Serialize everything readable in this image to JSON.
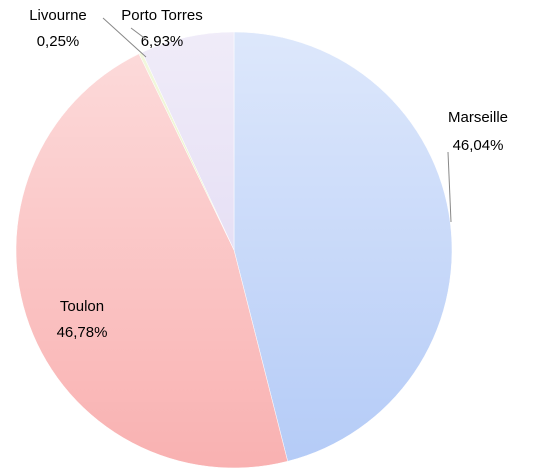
{
  "chart_data": {
    "type": "pie",
    "categories": [
      "Marseille",
      "Toulon",
      "Livourne",
      "Porto Torres"
    ],
    "values": [
      46.04,
      46.78,
      0.25,
      6.93
    ],
    "value_labels": [
      "46,04%",
      "46,78%",
      "0,25%",
      "6,93%"
    ],
    "colors": [
      "#b4cbf7",
      "#f9b1b1",
      "#e4efb8",
      "#ddd4f1"
    ]
  }
}
